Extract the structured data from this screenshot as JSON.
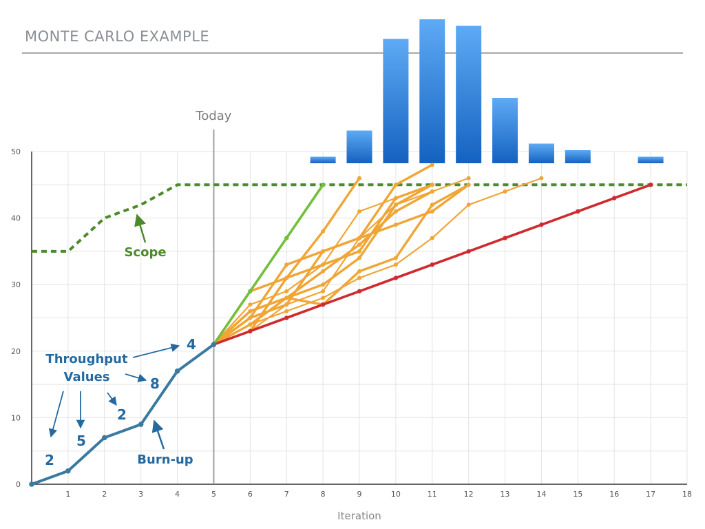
{
  "slide": {
    "title": "MONTE CARLO EXAMPLE"
  },
  "chart_data": {
    "type": "line",
    "xlabel": "Iteration",
    "ylabel": "",
    "xlim": [
      0,
      18
    ],
    "ylim": [
      0,
      50
    ],
    "x_ticks": [
      1,
      2,
      3,
      4,
      5,
      6,
      7,
      8,
      9,
      10,
      11,
      12,
      13,
      14,
      15,
      16,
      17,
      18
    ],
    "y_ticks": [
      0,
      10,
      20,
      30,
      40,
      50
    ],
    "grid": true,
    "colors": {
      "burnup": "#3a7aa1",
      "scope": "#4d8a2c",
      "simulation": "#f0a535",
      "fastest": "#72bf3a",
      "slowest": "#cf2a2e",
      "today_line": "#a0a0a0",
      "histogram": "#2f86d8",
      "annotation_blue": "#2469a0"
    },
    "burnup": {
      "points": [
        [
          0,
          0
        ],
        [
          1,
          2
        ],
        [
          2,
          7
        ],
        [
          3,
          9
        ],
        [
          4,
          17
        ],
        [
          5,
          21
        ]
      ]
    },
    "scope": {
      "points": [
        [
          0,
          35
        ],
        [
          1,
          35
        ],
        [
          2,
          40
        ],
        [
          3,
          42
        ],
        [
          4,
          45
        ],
        [
          18,
          45
        ]
      ]
    },
    "today": {
      "x": 5,
      "label": "Today"
    },
    "fastest": {
      "points": [
        [
          5,
          21
        ],
        [
          6,
          29
        ],
        [
          7,
          37
        ],
        [
          8,
          45
        ]
      ]
    },
    "slowest": {
      "points": [
        [
          5,
          21
        ],
        [
          6,
          23
        ],
        [
          7,
          25
        ],
        [
          8,
          27
        ],
        [
          9,
          29
        ],
        [
          10,
          31
        ],
        [
          11,
          33
        ],
        [
          12,
          35
        ],
        [
          13,
          37
        ],
        [
          14,
          39
        ],
        [
          15,
          41
        ],
        [
          16,
          43
        ],
        [
          17,
          45
        ]
      ]
    },
    "simulations": [
      [
        [
          5,
          21
        ],
        [
          6,
          29
        ],
        [
          7,
          31
        ],
        [
          8,
          38
        ],
        [
          9,
          46
        ]
      ],
      [
        [
          5,
          21
        ],
        [
          6,
          25
        ],
        [
          7,
          33
        ],
        [
          8,
          35
        ],
        [
          9,
          37
        ],
        [
          10,
          45
        ],
        [
          11,
          48
        ]
      ],
      [
        [
          5,
          21
        ],
        [
          6,
          27
        ],
        [
          7,
          29
        ],
        [
          8,
          33
        ],
        [
          9,
          41
        ],
        [
          10,
          43
        ],
        [
          11,
          45
        ]
      ],
      [
        [
          5,
          21
        ],
        [
          6,
          23
        ],
        [
          7,
          31
        ],
        [
          8,
          33
        ],
        [
          9,
          35
        ],
        [
          10,
          43
        ],
        [
          11,
          45
        ]
      ],
      [
        [
          5,
          21
        ],
        [
          6,
          25
        ],
        [
          7,
          27
        ],
        [
          8,
          35
        ],
        [
          9,
          37
        ],
        [
          10,
          39
        ],
        [
          11,
          41
        ],
        [
          12,
          45
        ]
      ],
      [
        [
          5,
          21
        ],
        [
          6,
          23
        ],
        [
          7,
          27
        ],
        [
          8,
          29
        ],
        [
          9,
          37
        ],
        [
          10,
          42
        ],
        [
          11,
          44
        ],
        [
          12,
          46
        ]
      ],
      [
        [
          5,
          21
        ],
        [
          6,
          24
        ],
        [
          7,
          28
        ],
        [
          8,
          30
        ],
        [
          9,
          34
        ],
        [
          10,
          42
        ],
        [
          11,
          45
        ]
      ],
      [
        [
          5,
          21
        ],
        [
          6,
          26
        ],
        [
          7,
          28
        ],
        [
          8,
          32
        ],
        [
          9,
          36
        ],
        [
          10,
          41
        ],
        [
          11,
          44
        ]
      ],
      [
        [
          5,
          21
        ],
        [
          6,
          24
        ],
        [
          7,
          26
        ],
        [
          8,
          28
        ],
        [
          9,
          31
        ],
        [
          10,
          33
        ],
        [
          11,
          37
        ],
        [
          12,
          42
        ],
        [
          13,
          44
        ],
        [
          14,
          46
        ]
      ],
      [
        [
          5,
          21
        ],
        [
          6,
          26
        ],
        [
          7,
          28
        ],
        [
          8,
          27
        ],
        [
          9,
          32
        ],
        [
          10,
          34
        ],
        [
          11,
          42
        ],
        [
          12,
          45
        ]
      ]
    ],
    "histogram": {
      "bins": [
        8,
        9,
        10,
        11,
        12,
        13,
        14,
        15,
        16,
        17
      ],
      "counts": [
        1,
        5,
        19,
        22,
        21,
        10,
        3,
        2,
        0,
        1
      ]
    },
    "annotations": {
      "scope_label": "Scope",
      "burnup_label": "Burn-up",
      "throughput_line1": "Throughput",
      "throughput_line2": "Values",
      "values": [
        "2",
        "5",
        "2",
        "8",
        "4"
      ]
    }
  }
}
